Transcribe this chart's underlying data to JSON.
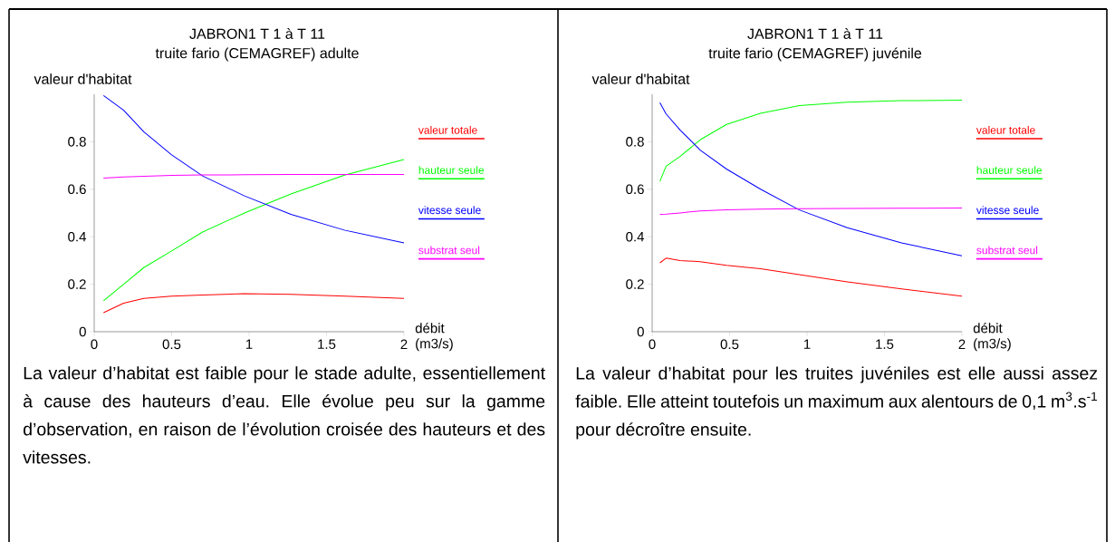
{
  "chart_data": [
    {
      "type": "line",
      "title": "JABRON1 T 1 à T 11",
      "subtitle": "truite fario (CEMAGREF) adulte",
      "xlabel": "débit (m3/s)",
      "ylabel": "valeur d'habitat",
      "x": [
        0.06,
        0.19,
        0.32,
        0.5,
        0.7,
        0.97,
        1.27,
        1.62,
        2.0
      ],
      "series": [
        {
          "name": "valeur totale",
          "color": "#ff0000",
          "values": [
            0.08,
            0.12,
            0.14,
            0.15,
            0.155,
            0.16,
            0.157,
            0.15,
            0.14
          ]
        },
        {
          "name": "hauteur seule",
          "color": "#00ff00",
          "values": [
            0.13,
            0.2,
            0.27,
            0.34,
            0.42,
            0.5,
            0.58,
            0.66,
            0.725
          ]
        },
        {
          "name": "vitesse seule",
          "color": "#0000ff",
          "values": [
            0.995,
            0.933,
            0.842,
            0.745,
            0.656,
            0.572,
            0.494,
            0.427,
            0.374
          ]
        },
        {
          "name": "substrat seul",
          "color": "#ff00ff",
          "values": [
            0.647,
            0.652,
            0.655,
            0.658,
            0.66,
            0.661,
            0.662,
            0.662,
            0.662
          ]
        }
      ],
      "xlim": [
        0,
        2
      ],
      "ylim": [
        0,
        1
      ],
      "xticks": [
        0,
        0.5,
        1,
        1.5,
        2
      ],
      "yticks": [
        0,
        0.2,
        0.4,
        0.6,
        0.8
      ],
      "legend": "right",
      "annotations": [
        "La valeur d’habitat est faible pour le stade adulte, essentiellement à cause des hauteurs d’eau. Elle évolue peu sur la gamme d’observation, en raison de l’évolution croisée des hauteurs et des vitesses."
      ]
    },
    {
      "type": "line",
      "title": "JABRON1 T 1 à T 11",
      "subtitle": "truite fario (CEMAGREF) juvénile",
      "xlabel": "débit (m3/s)",
      "ylabel": "valeur d'habitat",
      "x": [
        0.05,
        0.09,
        0.18,
        0.31,
        0.48,
        0.7,
        0.95,
        1.26,
        1.61,
        2.0
      ],
      "series": [
        {
          "name": "valeur totale",
          "color": "#ff0000",
          "values": [
            0.29,
            0.31,
            0.3,
            0.295,
            0.28,
            0.265,
            0.24,
            0.21,
            0.18,
            0.15
          ]
        },
        {
          "name": "hauteur seule",
          "color": "#00ff00",
          "values": [
            0.633,
            0.697,
            0.738,
            0.808,
            0.873,
            0.92,
            0.952,
            0.967,
            0.973,
            0.975
          ]
        },
        {
          "name": "vitesse seule",
          "color": "#0000ff",
          "values": [
            0.965,
            0.917,
            0.85,
            0.765,
            0.685,
            0.6,
            0.513,
            0.438,
            0.374,
            0.32
          ]
        },
        {
          "name": "substrat seul",
          "color": "#ff00ff",
          "values": [
            0.494,
            0.495,
            0.5,
            0.509,
            0.513,
            0.516,
            0.518,
            0.519,
            0.52,
            0.521
          ]
        }
      ],
      "xlim": [
        0,
        2
      ],
      "ylim": [
        0,
        1
      ],
      "xticks": [
        0,
        0.5,
        1,
        1.5,
        2
      ],
      "yticks": [
        0,
        0.2,
        0.4,
        0.6,
        0.8
      ],
      "legend": "right",
      "annotations": [
        "La valeur d’habitat pour les truites juvéniles est elle aussi assez faible. Elle atteint toutefois un maximum aux alentours de 0,1 m$^{3}$.s$^{-1}$ pour décroître ensuite."
      ]
    }
  ]
}
